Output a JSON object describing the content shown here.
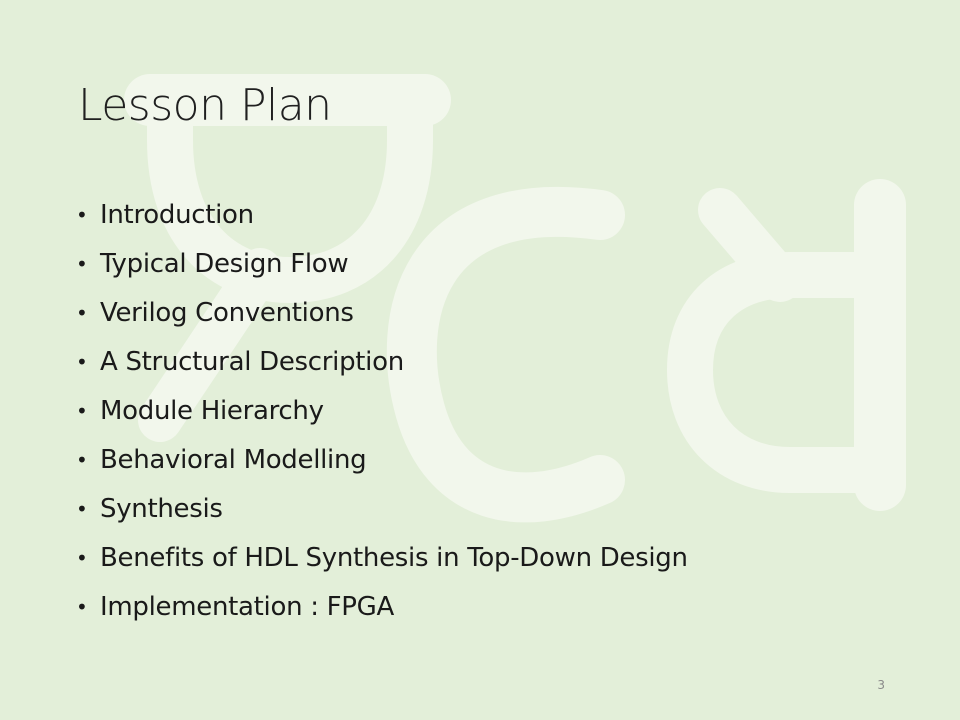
{
  "slide": {
    "title": "Lesson Plan",
    "bullets": [
      "Introduction",
      "Typical Design Flow",
      "Verilog Conventions",
      "A Structural Description",
      "Module Hierarchy",
      "Behavioral Modelling",
      "Synthesis",
      "Benefits of HDL Synthesis in Top-Down Design",
      "Implementation : FPGA"
    ],
    "bullet_glyph": "•",
    "page_number": "3",
    "background_color": "#e3efd9",
    "watermark_color": "#f3f8ee"
  }
}
